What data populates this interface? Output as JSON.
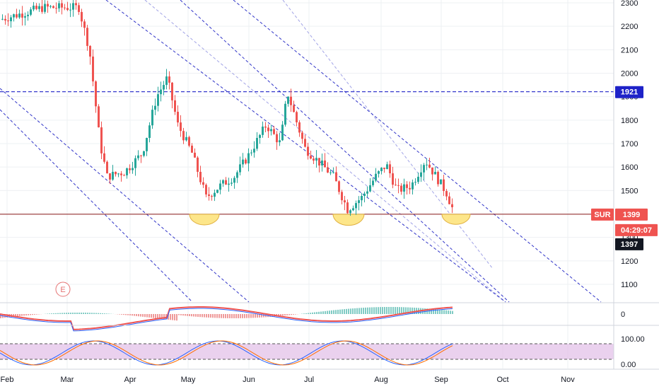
{
  "chart_data": {
    "type": "candlestick",
    "symbol": "SUR",
    "x_tick_labels": [
      "Feb",
      "Mar",
      "Apr",
      "May",
      "Jun",
      "Jul",
      "Aug",
      "Sep",
      "Oct",
      "Nov"
    ],
    "y_tick_labels": [
      "2300",
      "2200",
      "2100",
      "2000",
      "1900",
      "1800",
      "1700",
      "1600",
      "1500",
      "1400",
      "1300",
      "1200",
      "1100"
    ],
    "ylim": [
      1025,
      2315
    ],
    "price_series": {
      "months": [
        0,
        1,
        2,
        3,
        4,
        5,
        6,
        7
      ],
      "month_anchors": [
        {
          "month": "Feb",
          "price": 2250
        },
        {
          "month": "Mar",
          "price": 2250
        },
        {
          "month": "Apr",
          "price": 1560
        },
        {
          "month": "May",
          "price": 1450
        },
        {
          "month": "Jun",
          "price": 1750
        },
        {
          "month": "Jul",
          "price": 1640
        },
        {
          "month": "Aug",
          "price": 1570
        },
        {
          "month": "Sep",
          "price": 1440
        }
      ]
    },
    "horizontal_lines": [
      {
        "value": 1921,
        "style": "dashed",
        "color": "#1e22c8"
      },
      {
        "value": 1399,
        "style": "solid",
        "color": "#8b1a1a"
      }
    ],
    "annotations": [
      {
        "label": "1921",
        "background": "#1e22c8"
      },
      {
        "label": "SUR",
        "background": "#ef5350"
      },
      {
        "label": "1399",
        "background": "#ef5350"
      },
      {
        "label": "04:29:07",
        "background": "#ef5350"
      },
      {
        "label": "1397",
        "background": "#131722"
      },
      {
        "label": "E",
        "color": "#e57373"
      }
    ],
    "indicators": [
      {
        "name": "macd",
        "tick_labels": [
          "0"
        ]
      },
      {
        "name": "stochastic",
        "tick_labels": [
          "100.00",
          "0.00"
        ],
        "band_color": "#e1bee7"
      }
    ],
    "colors": {
      "up": "#26a69a",
      "down": "#ef5350",
      "channel": "#3034c8",
      "cup": "#fde68a"
    }
  }
}
